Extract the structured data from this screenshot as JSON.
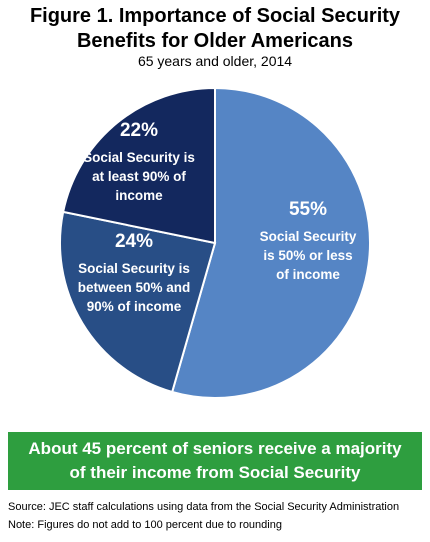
{
  "chart_data": {
    "type": "pie",
    "title_lines": [
      "Figure 1. Importance of Social Security",
      "Benefits for Older Americans"
    ],
    "subtitle": "65 years and older, 2014",
    "slices": [
      {
        "value": 55,
        "value_label": "55%",
        "label_lines": [
          "Social Security",
          "is 50% or less",
          "of income"
        ],
        "color": "#5585c5"
      },
      {
        "value": 24,
        "value_label": "24%",
        "label_lines": [
          "Social Security is",
          "between 50% and",
          "90% of income"
        ],
        "color": "#284e86"
      },
      {
        "value": 22,
        "value_label": "22%",
        "label_lines": [
          "Social Security is",
          "at least 90% of",
          "income"
        ],
        "color": "#13285e"
      }
    ]
  },
  "banner_lines": [
    "About 45 percent of seniors receive a majority",
    "of their income from Social Security"
  ],
  "source": "Source: JEC staff calculations using data from the Social Security Administration",
  "note": "Note: Figures do not add to 100 percent due to rounding"
}
